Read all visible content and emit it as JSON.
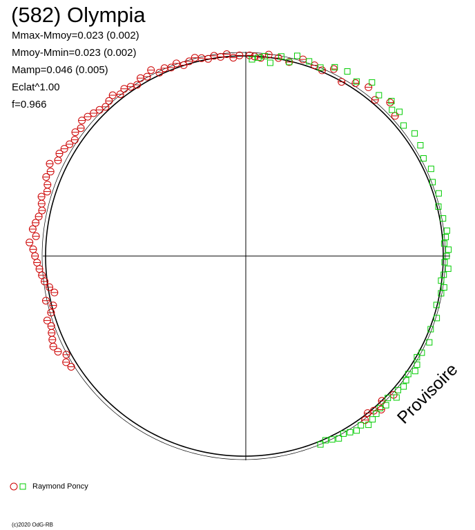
{
  "title": "(582) Olympia",
  "stats": {
    "line1": "Mmax-Mmoy=0.023 (0.002)",
    "line2": "Mmoy-Mmin=0.023 (0.002)",
    "line3": "Mamp=0.046 (0.005)",
    "line4": "Eclat^1.00",
    "line5": "f=0.966"
  },
  "watermark": "Provisoire",
  "copyright": "(c)2020 OdG-RB",
  "colors": {
    "series1": "#cc0000",
    "series2": "#00cc00",
    "axes": "#000000",
    "model": "#000000"
  },
  "chart_data": {
    "type": "scatter",
    "title": "(582) Olympia",
    "subtype": "polar phase plot",
    "period_fraction_range": [
      0,
      1
    ],
    "legend": {
      "placement": "bottom-left",
      "label": "Raymond Poncy"
    },
    "series": [
      {
        "name": "Raymond Poncy",
        "marker": "circle",
        "color": "#cc0000",
        "phase": [
          0.003,
          0.007,
          0.012,
          0.018,
          0.026,
          0.035,
          0.045,
          0.055,
          0.062,
          0.07,
          0.08,
          0.09,
          0.1,
          0.11,
          0.12,
          0.13,
          0.37,
          0.38,
          0.385,
          0.39,
          0.395,
          0.4,
          0.66,
          0.665,
          0.67,
          0.675,
          0.68,
          0.685,
          0.69,
          0.695,
          0.7,
          0.705,
          0.71,
          0.715,
          0.72,
          0.725,
          0.73,
          0.735,
          0.74,
          0.745,
          0.75,
          0.755,
          0.76,
          0.765,
          0.77,
          0.775,
          0.78,
          0.785,
          0.79,
          0.795,
          0.8,
          0.805,
          0.81,
          0.815,
          0.82,
          0.825,
          0.83,
          0.835,
          0.84,
          0.845,
          0.85,
          0.855,
          0.86,
          0.865,
          0.87,
          0.875,
          0.88,
          0.885,
          0.89,
          0.895,
          0.9,
          0.905,
          0.91,
          0.915,
          0.92,
          0.925,
          0.93,
          0.935,
          0.94,
          0.945,
          0.95,
          0.955,
          0.96,
          0.965,
          0.97,
          0.975,
          0.98,
          0.985,
          0.99,
          0.995
        ],
        "radius": [
          1.01,
          1.005,
          1.0,
          1.02,
          1.01,
          1.0,
          1.03,
          1.02,
          1.01,
          1.04,
          1.0,
          1.03,
          1.05,
          1.02,
          1.06,
          1.03,
          1.02,
          1.0,
          1.03,
          1.01,
          1.0,
          1.02,
          1.04,
          1.05,
          1.03,
          1.06,
          1.07,
          1.06,
          1.05,
          1.04,
          1.05,
          1.02,
          1.0,
          1.03,
          0.98,
          1.0,
          1.02,
          1.03,
          1.04,
          1.05,
          1.06,
          1.07,
          1.09,
          1.06,
          1.08,
          1.07,
          1.06,
          1.05,
          1.06,
          1.07,
          1.05,
          1.06,
          1.08,
          1.07,
          1.09,
          1.06,
          1.07,
          1.06,
          1.05,
          1.04,
          1.06,
          1.05,
          1.07,
          1.06,
          1.05,
          1.04,
          1.03,
          1.04,
          1.05,
          1.03,
          1.04,
          1.03,
          1.02,
          1.04,
          1.03,
          1.05,
          1.02,
          1.03,
          1.02,
          1.03,
          1.01,
          1.02,
          1.03,
          1.02,
          1.01,
          1.02,
          1.01,
          1.02,
          1.0,
          1.01
        ]
      },
      {
        "name": "Raymond Poncy",
        "marker": "square",
        "color": "#00cc00",
        "phase": [
          0.005,
          0.01,
          0.015,
          0.02,
          0.028,
          0.035,
          0.04,
          0.05,
          0.06,
          0.07,
          0.08,
          0.09,
          0.1,
          0.11,
          0.12,
          0.125,
          0.13,
          0.14,
          0.15,
          0.16,
          0.17,
          0.18,
          0.19,
          0.2,
          0.21,
          0.22,
          0.23,
          0.235,
          0.24,
          0.245,
          0.25,
          0.255,
          0.26,
          0.265,
          0.27,
          0.275,
          0.28,
          0.29,
          0.3,
          0.31,
          0.32,
          0.33,
          0.335,
          0.34,
          0.345,
          0.35,
          0.355,
          0.36,
          0.365,
          0.37,
          0.375,
          0.38,
          0.385,
          0.39,
          0.395,
          0.4,
          0.405,
          0.41,
          0.415,
          0.42,
          0.425,
          0.43,
          0.435,
          0.44
        ],
        "radius": [
          0.99,
          1.0,
          1.01,
          0.98,
          1.02,
          1.0,
          1.04,
          1.03,
          1.02,
          1.05,
          1.06,
          1.04,
          1.08,
          1.05,
          1.07,
          1.04,
          1.06,
          1.03,
          1.05,
          1.04,
          1.02,
          1.03,
          1.01,
          1.02,
          1.0,
          1.01,
          1.02,
          1.01,
          1.0,
          1.02,
          1.01,
          1.0,
          1.02,
          1.0,
          0.99,
          1.01,
          1.0,
          0.99,
          1.01,
          1.0,
          1.02,
          1.01,
          1.0,
          1.02,
          1.03,
          1.01,
          1.02,
          1.03,
          1.02,
          1.04,
          1.01,
          1.03,
          1.02,
          1.03,
          1.04,
          1.05,
          1.03,
          1.04,
          1.03,
          1.02,
          1.03,
          1.02,
          1.01,
          1.02
        ]
      }
    ],
    "model": {
      "type": "fitted lightcurve",
      "amplitude": 0.046
    }
  }
}
